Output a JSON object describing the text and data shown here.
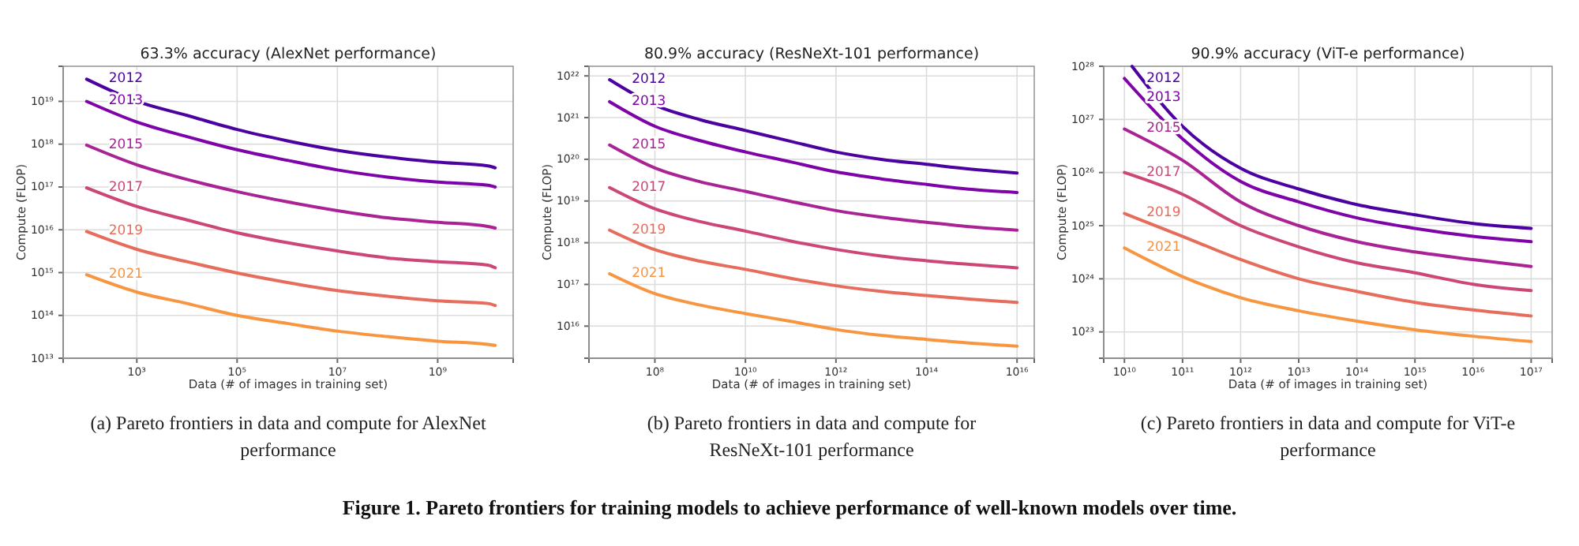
{
  "chart_data": [
    {
      "type": "line",
      "title": "63.3% accuracy (AlexNet performance)",
      "xlabel": "Data (# of images in training set)",
      "ylabel": "Compute (FLOP)",
      "log": "xy",
      "grid": true,
      "legend": false,
      "marker": "none",
      "line_style": "solid",
      "x": [
        100.0,
        1000.0,
        10000.0,
        100000.0,
        1000000.0,
        10000000.0,
        100000000.0,
        1000000000.0,
        10000000000.0,
        14000000000.0
      ],
      "xlim": [
        34.0,
        32000000000.0
      ],
      "ylim": [
        10000000000000.0,
        6.6e+19
      ],
      "xticks": [
        {
          "value": 1000.0,
          "label": "10³"
        },
        {
          "value": 100000.0,
          "label": "10⁵"
        },
        {
          "value": 10000000.0,
          "label": "10⁷"
        },
        {
          "value": 1000000000.0,
          "label": "10⁹"
        }
      ],
      "yticks": [
        {
          "value": 10000000000000.0,
          "label": "10¹³"
        },
        {
          "value": 100000000000000.0,
          "label": "10¹⁴"
        },
        {
          "value": 1000000000000000.0,
          "label": "10¹⁵"
        },
        {
          "value": 1e+16,
          "label": "10¹⁶"
        },
        {
          "value": 1e+17,
          "label": "10¹⁷"
        },
        {
          "value": 1e+18,
          "label": "10¹⁸"
        },
        {
          "value": 1e+19,
          "label": "10¹⁹"
        }
      ],
      "series": [
        {
          "name": "2012",
          "color": "#4c02a1",
          "values": [
            3.3e+19,
            1e+19,
            4.7e+18,
            2.2e+18,
            1.2e+18,
            7.2e+17,
            5e+17,
            3.8e+17,
            3.1e+17,
            2.8e+17
          ]
        },
        {
          "name": "2013",
          "color": "#7e03a8",
          "values": [
            1e+19,
            3.3e+18,
            1.5e+18,
            7.4e+17,
            4.2e+17,
            2.5e+17,
            1.7e+17,
            1.3e+17,
            1.1e+17,
            1e+17
          ]
        },
        {
          "name": "2015",
          "color": "#a92395",
          "values": [
            9.5e+17,
            3.3e+17,
            1.5e+17,
            7.8e+16,
            4.5e+16,
            2.8e+16,
            1.9e+16,
            1.5e+16,
            1.2e+16,
            1.1e+16
          ]
        },
        {
          "name": "2017",
          "color": "#cc4778",
          "values": [
            9.5e+16,
            3.5e+16,
            1.7e+16,
            8500000000000000.0,
            5000000000000000.0,
            3200000000000000.0,
            2200000000000000.0,
            1800000000000000.0,
            1500000000000000.0,
            1300000000000000.0
          ]
        },
        {
          "name": "2019",
          "color": "#e66c5c",
          "values": [
            9100000000000000.0,
            3500000000000000.0,
            1800000000000000.0,
            980000000000000.0,
            590000000000000.0,
            380000000000000.0,
            280000000000000.0,
            220000000000000.0,
            190000000000000.0,
            170000000000000.0
          ]
        },
        {
          "name": "2021",
          "color": "#f89540",
          "values": [
            890000000000000.0,
            350000000000000.0,
            190000000000000.0,
            100000000000000.0,
            65000000000000.0,
            43000000000000.0,
            32000000000000.0,
            25000000000000.0,
            21000000000000.0,
            20000000000000.0
          ]
        }
      ],
      "annotations": [
        "(a) Pareto frontiers in data and compute for AlexNet performance"
      ]
    },
    {
      "type": "line",
      "title": "80.9% accuracy (ResNeXt-101 performance)",
      "xlabel": "Data (# of images in training set)",
      "ylabel": "Compute (FLOP)",
      "log": "xy",
      "grid": true,
      "legend": false,
      "marker": "none",
      "line_style": "solid",
      "x": [
        10000000.0,
        100000000.0,
        1000000000.0,
        10000000000.0,
        100000000000.0,
        1000000000000.0,
        10000000000000.0,
        100000000000000.0,
        1000000000000000.0,
        1e+16
      ],
      "xlim": [
        3500000.0,
        2.4e+16
      ],
      "ylim": [
        1700000000000000.0,
        1.7e+22
      ],
      "xticks": [
        {
          "value": 100000000.0,
          "label": "10⁸"
        },
        {
          "value": 10000000000.0,
          "label": "10¹⁰"
        },
        {
          "value": 1000000000000.0,
          "label": "10¹²"
        },
        {
          "value": 100000000000000.0,
          "label": "10¹⁴"
        },
        {
          "value": 1e+16,
          "label": "10¹⁶"
        }
      ],
      "yticks": [
        {
          "value": 1e+16,
          "label": "10¹⁶"
        },
        {
          "value": 1e+17,
          "label": "10¹⁷"
        },
        {
          "value": 1e+18,
          "label": "10¹⁸"
        },
        {
          "value": 1e+19,
          "label": "10¹⁹"
        },
        {
          "value": 1e+20,
          "label": "10²⁰"
        },
        {
          "value": 1e+21,
          "label": "10²¹"
        },
        {
          "value": 1e+22,
          "label": "10²²"
        }
      ],
      "series": [
        {
          "name": "2012",
          "color": "#4c02a1",
          "values": [
            8.1e+21,
            2e+21,
            8.9e+20,
            4.9e+20,
            2.7e+20,
            1.5e+20,
            1e+20,
            7.6e+19,
            5.8e+19,
            4.7e+19
          ]
        },
        {
          "name": "2013",
          "color": "#7e03a8",
          "values": [
            2.4e+21,
            6.2e+20,
            2.8e+20,
            1.5e+20,
            8.7e+19,
            5e+19,
            3.4e+19,
            2.5e+19,
            1.9e+19,
            1.6e+19
          ]
        },
        {
          "name": "2015",
          "color": "#a92395",
          "values": [
            2.2e+20,
            6.2e+19,
            2.9e+19,
            1.7e+19,
            9.8e+18,
            5.9e+18,
            4.1e+18,
            3.1e+18,
            2.4e+18,
            2e+18
          ]
        },
        {
          "name": "2017",
          "color": "#cc4778",
          "values": [
            2.1e+19,
            6.5e+18,
            3.2e+18,
            1.9e+18,
            1.1e+18,
            6.9e+17,
            4.8e+17,
            3.7e+17,
            3e+17,
            2.5e+17
          ]
        },
        {
          "name": "2019",
          "color": "#e66c5c",
          "values": [
            2e+18,
            6.8e+17,
            3.6e+17,
            2.3e+17,
            1.4e+17,
            9.3e+16,
            6.8e+16,
            5.4e+16,
            4.4e+16,
            3.7e+16
          ]
        },
        {
          "name": "2021",
          "color": "#f89540",
          "values": [
            1.8e+17,
            6e+16,
            3.2e+16,
            2e+16,
            1.3e+16,
            8300000000000000.0,
            6000000000000000.0,
            4800000000000000.0,
            3900000000000000.0,
            3300000000000000.0
          ]
        }
      ],
      "annotations": [
        "(b) Pareto frontiers in data and compute for ResNeXt-101 performance",
        "Figure 1. Pareto frontiers for training models to achieve performance of well-known models over time."
      ]
    },
    {
      "type": "line",
      "title": "90.9% accuracy (ViT-e performance)",
      "xlabel": "Data (# of images in training set)",
      "ylabel": "Compute (FLOP)",
      "log": "xy",
      "grid": true,
      "legend": false,
      "marker": "none",
      "line_style": "solid",
      "x": [
        10000000000.0,
        100000000000.0,
        1000000000000.0,
        10000000000000.0,
        100000000000000.0,
        1000000000000000.0,
        1e+16,
        1e+17
      ],
      "xlim": [
        4400000000.0,
        2.3e+17
      ],
      "ylim": [
        3.2e+22,
        1e+28
      ],
      "xticks": [
        {
          "value": 10000000000.0,
          "label": "10¹⁰"
        },
        {
          "value": 100000000000.0,
          "label": "10¹¹"
        },
        {
          "value": 1000000000000.0,
          "label": "10¹²"
        },
        {
          "value": 10000000000000.0,
          "label": "10¹³"
        },
        {
          "value": 100000000000000.0,
          "label": "10¹⁴"
        },
        {
          "value": 1000000000000000.0,
          "label": "10¹⁵"
        },
        {
          "value": 1e+16,
          "label": "10¹⁶"
        },
        {
          "value": 1e+17,
          "label": "10¹⁷"
        }
      ],
      "yticks": [
        {
          "value": 1e+23,
          "label": "10²³"
        },
        {
          "value": 1e+24,
          "label": "10²⁴"
        },
        {
          "value": 1e+25,
          "label": "10²⁵"
        },
        {
          "value": 1e+26,
          "label": "10²⁶"
        },
        {
          "value": 1e+27,
          "label": "10²⁷"
        },
        {
          "value": 1e+28,
          "label": "10²⁸"
        }
      ],
      "series": [
        {
          "name": "2012",
          "color": "#4c02a1",
          "x": [
            13500000000.0,
            100000000000.0,
            1000000000000.0,
            10000000000000.0,
            100000000000000.0,
            1000000000000000.0,
            1e+16,
            1e+17
          ],
          "values": [
            1e+28,
            7.4e+26,
            1.2e+26,
            4.9e+25,
            2.5e+25,
            1.6e+25,
            1.1e+25,
            8.9e+24
          ]
        },
        {
          "name": "2013",
          "color": "#7e03a8",
          "values": [
            5.9e+27,
            4.3e+26,
            6.8e+25,
            2.8e+25,
            1.4e+25,
            8.9e+24,
            6.3e+24,
            5e+24
          ]
        },
        {
          "name": "2015",
          "color": "#a92395",
          "values": [
            6.6e+26,
            1.7e+26,
            2.8e+25,
            1e+25,
            5e+24,
            3.2e+24,
            2.3e+24,
            1.7e+24
          ]
        },
        {
          "name": "2017",
          "color": "#cc4778",
          "values": [
            1e+26,
            3.9e+25,
            1e+25,
            4e+24,
            2e+24,
            1.3e+24,
            7.9e+23,
            6e+23
          ]
        },
        {
          "name": "2019",
          "color": "#e66c5c",
          "values": [
            1.7e+25,
            6.3e+24,
            2.3e+24,
            1e+24,
            5.8e+23,
            3.6e+23,
            2.6e+23,
            2e+23
          ]
        },
        {
          "name": "2021",
          "color": "#f89540",
          "values": [
            3.8e+24,
            1.1e+24,
            4.4e+23,
            2.5e+23,
            1.6e+23,
            1.1e+23,
            8.3e+22,
            6.6e+22
          ]
        }
      ],
      "annotations": [
        "(c) Pareto frontiers in data and compute for ViT-e performance"
      ]
    }
  ]
}
